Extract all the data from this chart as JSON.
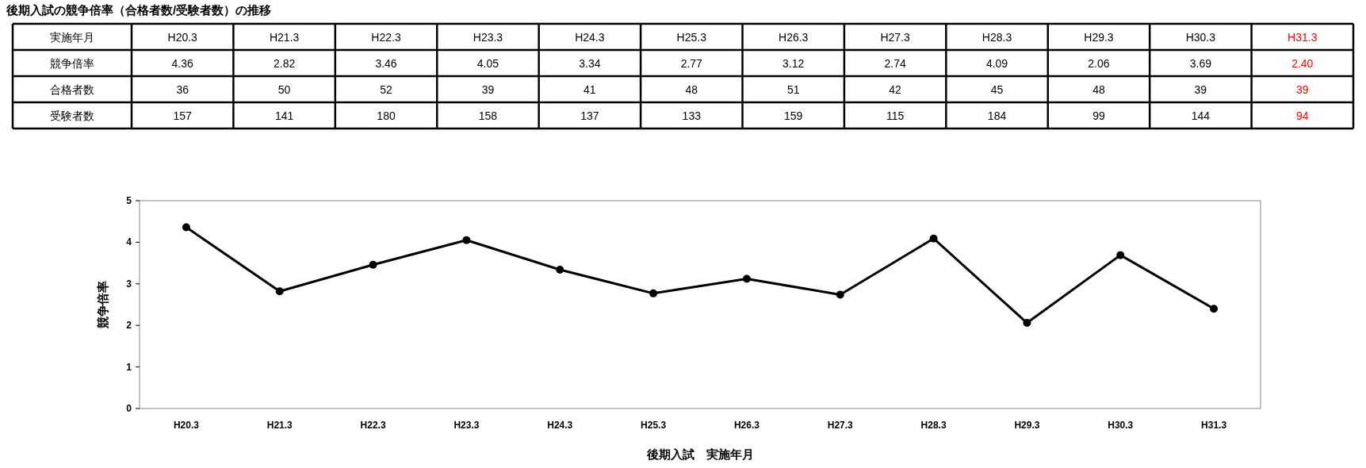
{
  "chart_data": [
    {
      "type": "other",
      "data_labels": true,
      "title": "後期入試の競争倍率（合格者数/受験者数）の推移",
      "xlabel": "実施年月",
      "categories": [
        "H20.3",
        "H21.3",
        "H22.3",
        "H23.3",
        "H24.3",
        "H25.3",
        "H26.3",
        "H27.3",
        "H28.3",
        "H29.3",
        "H30.3",
        "H31.3"
      ],
      "colors": [
        "#000000",
        "#000000",
        "#000000",
        "#000000",
        "#000000",
        "#000000",
        "#000000",
        "#000000",
        "#000000",
        "#000000",
        "#000000",
        "#ff0000"
      ],
      "series": [
        {
          "name": "競争倍率",
          "values": [
            4.36,
            2.82,
            3.46,
            4.05,
            3.34,
            2.77,
            3.12,
            2.74,
            4.09,
            2.06,
            3.69,
            2.4
          ],
          "value_labels": [
            "4.36",
            "2.82",
            "3.46",
            "4.05",
            "3.34",
            "2.77",
            "3.12",
            "2.74",
            "4.09",
            "2.06",
            "3.69",
            "2.40"
          ]
        },
        {
          "name": "合格者数",
          "values": [
            36,
            50,
            52,
            39,
            41,
            48,
            51,
            42,
            45,
            48,
            39,
            39
          ]
        },
        {
          "name": "受験者数",
          "values": [
            157,
            141,
            180,
            158,
            137,
            133,
            159,
            115,
            184,
            99,
            144,
            94
          ]
        }
      ]
    },
    {
      "type": "line",
      "xlabel": "後期入試　実施年月",
      "ylabel": "競争倍率",
      "categories": [
        "H20.3",
        "H21.3",
        "H22.3",
        "H23.3",
        "H24.3",
        "H25.3",
        "H26.3",
        "H27.3",
        "H28.3",
        "H29.3",
        "H30.3",
        "H31.3"
      ],
      "values": [
        4.36,
        2.82,
        3.46,
        4.05,
        3.34,
        2.77,
        3.12,
        2.74,
        4.09,
        2.06,
        3.69,
        2.4
      ],
      "color": "#000000",
      "marker": "circle",
      "ylim": [
        0,
        5
      ],
      "yticks": [
        0,
        1,
        2,
        3,
        4,
        5
      ]
    }
  ]
}
